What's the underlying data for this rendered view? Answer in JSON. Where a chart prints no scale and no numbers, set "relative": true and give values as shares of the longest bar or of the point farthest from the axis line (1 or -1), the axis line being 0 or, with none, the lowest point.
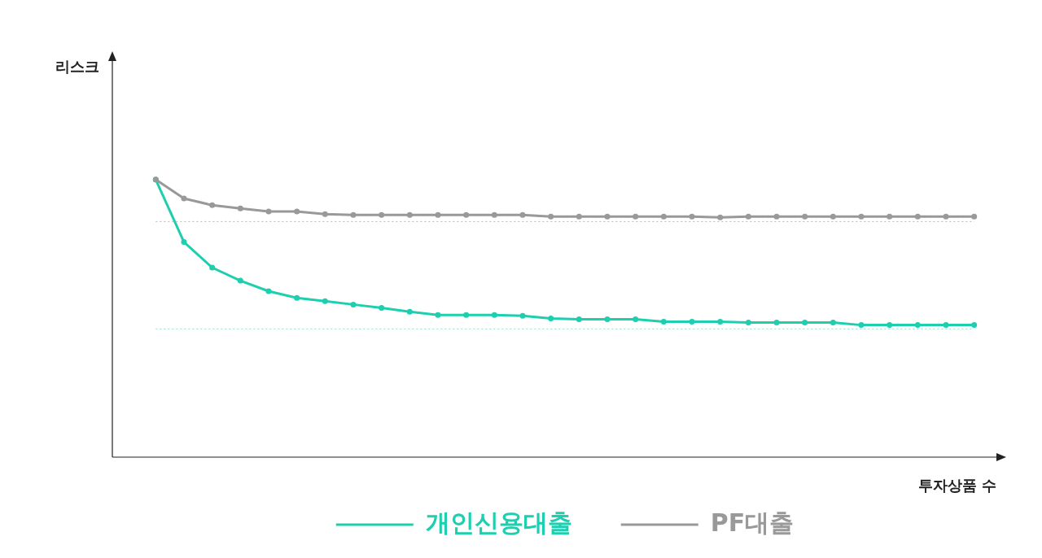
{
  "chart_data": {
    "type": "line",
    "relative": true,
    "annotations": [
      "리스크"
    ],
    "xlabel": "투자상품 수",
    "legend": "bottom",
    "marker": "circle",
    "line_style": "solid",
    "grid": false,
    "categories": [
      null,
      null,
      null,
      null,
      null,
      null,
      null,
      null,
      null,
      null,
      null,
      null,
      null,
      null,
      null,
      null,
      null,
      null,
      null,
      null,
      null,
      null,
      null,
      null,
      null,
      null,
      null,
      null,
      null,
      null
    ],
    "series": [
      {
        "name": "개인신용대출",
        "color": "#1dcfae",
        "values": [
          1,
          0.775,
          0.683,
          0.636,
          0.598,
          0.574,
          0.562,
          0.55,
          0.538,
          0.524,
          0.512,
          0.512,
          0.512,
          0.509,
          0.5,
          0.497,
          0.497,
          0.497,
          0.488,
          0.488,
          0.488,
          0.485,
          0.485,
          0.485,
          0.485,
          0.476,
          0.476,
          0.476,
          0.476,
          0.476
        ]
      },
      {
        "name": "PF대출",
        "color": "#999999",
        "values": [
          1,
          0.932,
          0.908,
          0.896,
          0.885,
          0.885,
          0.876,
          0.873,
          0.873,
          0.873,
          0.873,
          0.873,
          0.873,
          0.873,
          0.867,
          0.867,
          0.867,
          0.867,
          0.867,
          0.867,
          0.864,
          0.867,
          0.867,
          0.867,
          0.867,
          0.867,
          0.867,
          0.867,
          0.867,
          0.867
        ]
      }
    ],
    "ref_lines": [
      {
        "axis": "y",
        "value": 0.849,
        "color": "#b4b4b4",
        "line_style": "dotted"
      },
      {
        "axis": "y",
        "value": 0.462,
        "color": "#8fdfd0",
        "line_style": "dotted"
      }
    ]
  }
}
